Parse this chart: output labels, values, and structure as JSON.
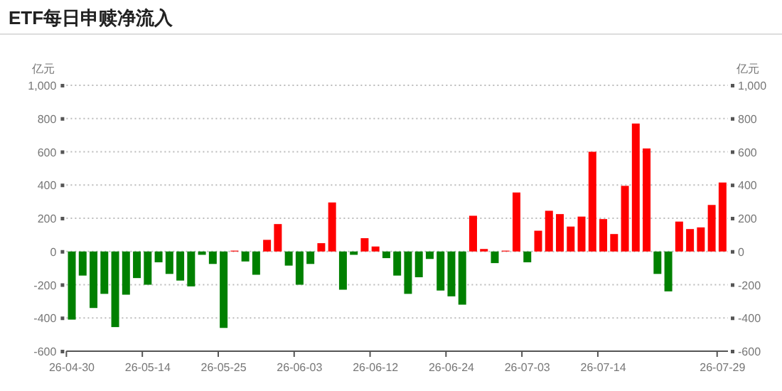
{
  "chart_data": {
    "type": "bar",
    "title": "ETF每日申赎净流入",
    "ylabel": "亿元",
    "y2label": "亿元",
    "categories": [
      "26-04-30",
      null,
      null,
      null,
      null,
      null,
      null,
      "26-05-14",
      null,
      null,
      null,
      null,
      null,
      null,
      "26-05-25",
      null,
      null,
      null,
      null,
      null,
      null,
      "26-06-03",
      null,
      null,
      null,
      null,
      null,
      null,
      "26-06-12",
      null,
      null,
      null,
      null,
      null,
      null,
      "26-06-24",
      null,
      null,
      null,
      null,
      null,
      null,
      "26-07-03",
      null,
      null,
      null,
      null,
      null,
      null,
      "26-07-14",
      null,
      null,
      null,
      null,
      null,
      null,
      null,
      null,
      null,
      null,
      "26-07-29"
    ],
    "values": [
      -410,
      -145,
      -340,
      -255,
      -455,
      -260,
      -160,
      -200,
      -65,
      -135,
      -175,
      -210,
      -20,
      -75,
      -460,
      5,
      -60,
      -140,
      70,
      165,
      -85,
      -200,
      -75,
      50,
      295,
      -230,
      -20,
      80,
      30,
      -40,
      -145,
      -255,
      -155,
      -45,
      -235,
      -270,
      -320,
      215,
      15,
      -70,
      5,
      355,
      -65,
      125,
      245,
      225,
      150,
      210,
      600,
      195,
      105,
      395,
      770,
      620,
      -135,
      -240,
      180,
      135,
      145,
      280,
      415
    ],
    "colors": [
      "#008000",
      "#008000",
      "#008000",
      "#008000",
      "#008000",
      "#008000",
      "#008000",
      "#008000",
      "#008000",
      "#008000",
      "#008000",
      "#008000",
      "#008000",
      "#008000",
      "#008000",
      "#ff0000",
      "#008000",
      "#008000",
      "#ff0000",
      "#ff0000",
      "#008000",
      "#008000",
      "#008000",
      "#ff0000",
      "#ff0000",
      "#008000",
      "#008000",
      "#ff0000",
      "#ff0000",
      "#008000",
      "#008000",
      "#008000",
      "#008000",
      "#008000",
      "#008000",
      "#008000",
      "#008000",
      "#ff0000",
      "#ff0000",
      "#008000",
      "#ff0000",
      "#ff0000",
      "#008000",
      "#ff0000",
      "#ff0000",
      "#ff0000",
      "#ff0000",
      "#ff0000",
      "#ff0000",
      "#ff0000",
      "#ff0000",
      "#ff0000",
      "#ff0000",
      "#ff0000",
      "#008000",
      "#008000",
      "#ff0000",
      "#ff0000",
      "#ff0000",
      "#ff0000",
      "#ff0000"
    ],
    "ylim": [
      -600,
      1000
    ],
    "yticks": [
      -600,
      -400,
      -200,
      0,
      200,
      400,
      600,
      800,
      {
        "value": 1000,
        "label": "1,000"
      }
    ],
    "y2lim": [
      -600,
      1000
    ],
    "y2ticks": [
      -600,
      -400,
      -200,
      0,
      200,
      400,
      600,
      800,
      {
        "value": 1000,
        "label": "1,000"
      }
    ],
    "grid": "y"
  }
}
